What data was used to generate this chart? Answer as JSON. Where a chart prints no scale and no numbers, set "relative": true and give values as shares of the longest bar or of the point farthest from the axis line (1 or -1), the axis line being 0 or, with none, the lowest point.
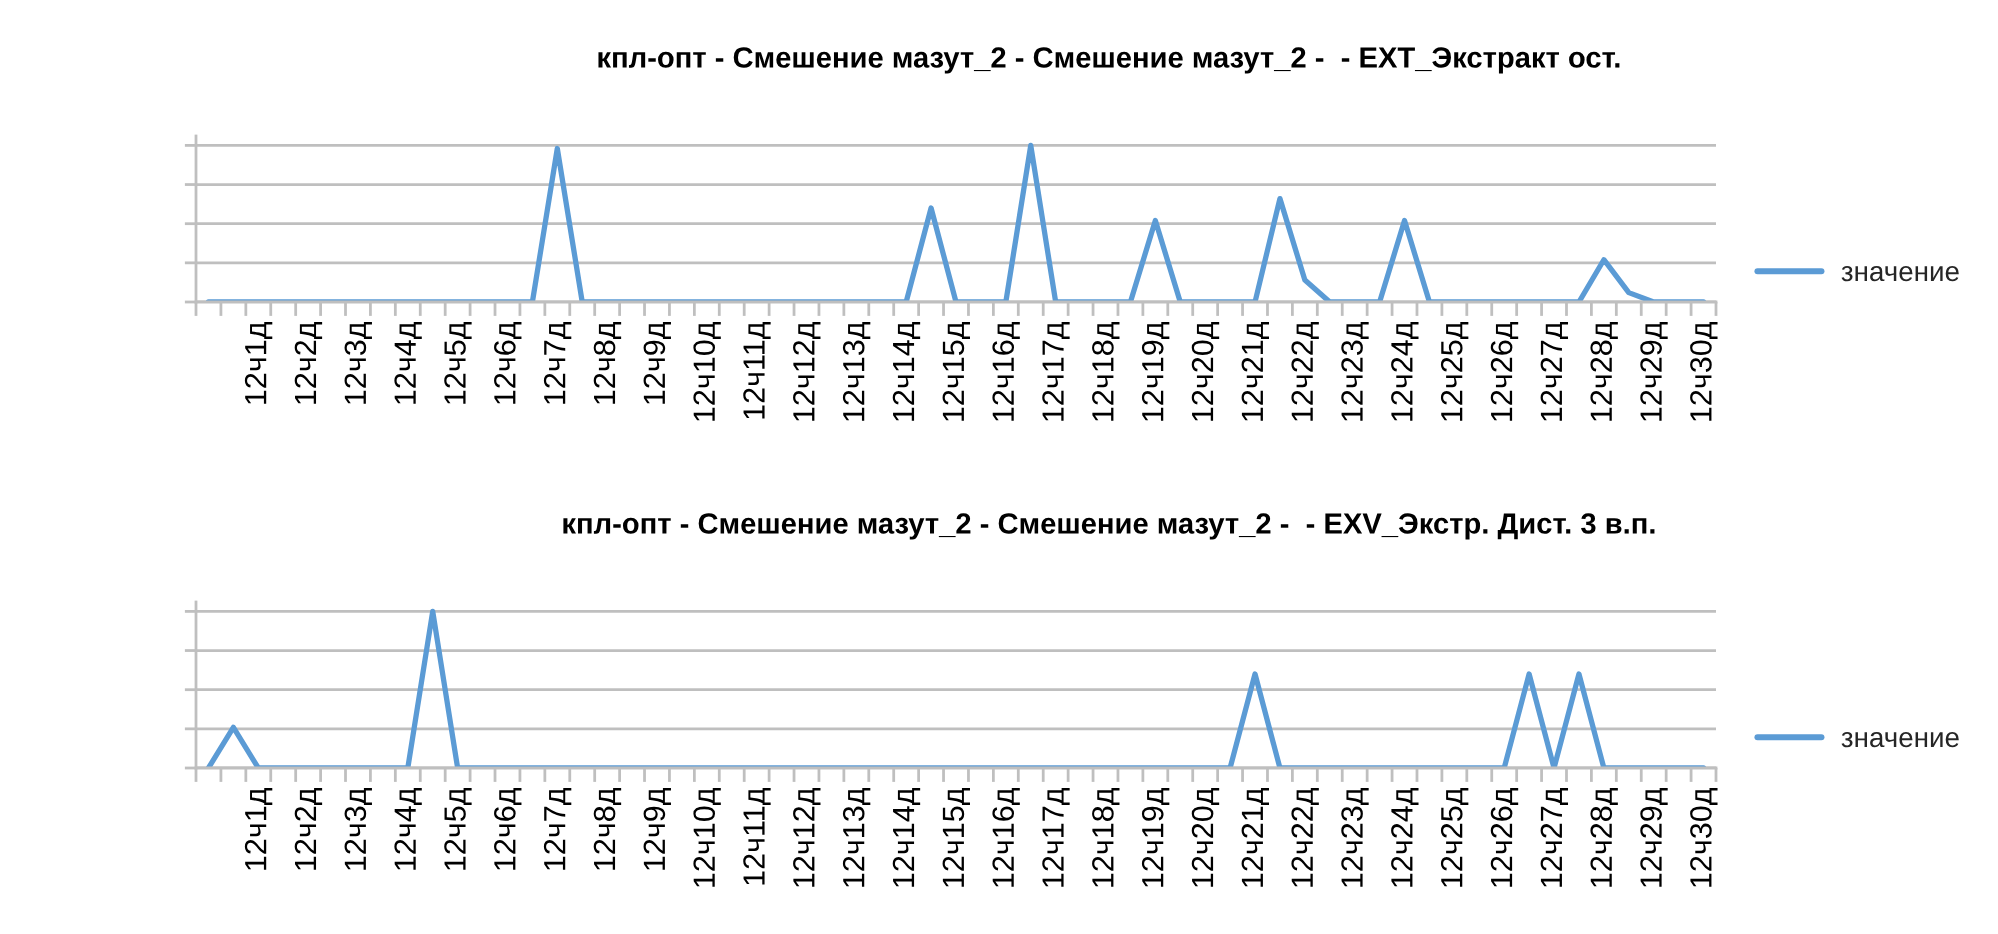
{
  "chart_data": [
    {
      "type": "line",
      "title": "кпл-опт - Смешение мазут_2 - Смешение мазут_2 -  - EXT_Экстракт ост.",
      "relative": true,
      "grid": "y",
      "legend": "right",
      "categories": [
        null,
        null,
        "12ч1д",
        null,
        "12ч2д",
        null,
        "12ч3д",
        null,
        "12ч4д",
        null,
        "12ч5д",
        null,
        "12ч6д",
        null,
        "12ч7д",
        null,
        "12ч8д",
        null,
        "12ч9д",
        null,
        "12ч10д",
        null,
        "12ч11д",
        null,
        "12ч12д",
        null,
        "12ч13д",
        null,
        "12ч14д",
        null,
        "12ч15д",
        null,
        "12ч16д",
        null,
        "12ч17д",
        null,
        "12ч18д",
        null,
        "12ч19д",
        null,
        "12ч20д",
        null,
        "12ч21д",
        null,
        "12ч22д",
        null,
        "12ч23д",
        null,
        "12ч24д",
        null,
        "12ч25д",
        null,
        "12ч26д",
        null,
        "12ч27д",
        null,
        "12ч28д",
        null,
        "12ч29д",
        null,
        "12ч30д"
      ],
      "series": [
        {
          "name": "значение",
          "color": "#5b9bd5",
          "values": [
            0,
            0,
            0,
            0,
            0,
            0,
            0,
            0,
            0,
            0,
            0,
            0,
            0,
            0,
            0.98,
            0,
            0,
            0,
            0,
            0,
            0,
            0,
            0,
            0,
            0,
            0,
            0,
            0,
            0,
            0.6,
            0,
            0,
            0,
            1,
            0,
            0,
            0,
            0,
            0.52,
            0,
            0,
            0,
            0,
            0.66,
            0.14,
            0,
            0,
            0,
            0.52,
            0,
            0,
            0,
            0,
            0,
            0,
            0,
            0.27,
            0.06,
            0,
            0,
            0
          ]
        }
      ]
    },
    {
      "type": "line",
      "title": "кпл-опт - Смешение мазут_2 - Смешение мазут_2 -  - EXV_Экстр. Дист. 3 в.п.",
      "relative": true,
      "grid": "y",
      "legend": "right",
      "categories": [
        null,
        null,
        "12ч1д",
        null,
        "12ч2д",
        null,
        "12ч3д",
        null,
        "12ч4д",
        null,
        "12ч5д",
        null,
        "12ч6д",
        null,
        "12ч7д",
        null,
        "12ч8д",
        null,
        "12ч9д",
        null,
        "12ч10д",
        null,
        "12ч11д",
        null,
        "12ч12д",
        null,
        "12ч13д",
        null,
        "12ч14д",
        null,
        "12ч15д",
        null,
        "12ч16д",
        null,
        "12ч17д",
        null,
        "12ч18д",
        null,
        "12ч19д",
        null,
        "12ч20д",
        null,
        "12ч21д",
        null,
        "12ч22д",
        null,
        "12ч23д",
        null,
        "12ч24д",
        null,
        "12ч25д",
        null,
        "12ч26д",
        null,
        "12ч27д",
        null,
        "12ч28д",
        null,
        "12ч29д",
        null,
        "12ч30д"
      ],
      "series": [
        {
          "name": "значение",
          "color": "#5b9bd5",
          "values": [
            0,
            0.26,
            0,
            0,
            0,
            0,
            0,
            0,
            0,
            1,
            0,
            0,
            0,
            0,
            0,
            0,
            0,
            0,
            0,
            0,
            0,
            0,
            0,
            0,
            0,
            0,
            0,
            0,
            0,
            0,
            0,
            0,
            0,
            0,
            0,
            0,
            0,
            0,
            0,
            0,
            0,
            0,
            0.6,
            0,
            0,
            0,
            0,
            0,
            0,
            0,
            0,
            0,
            0,
            0.6,
            0,
            0.6,
            0,
            0,
            0,
            0,
            0
          ]
        }
      ]
    }
  ]
}
